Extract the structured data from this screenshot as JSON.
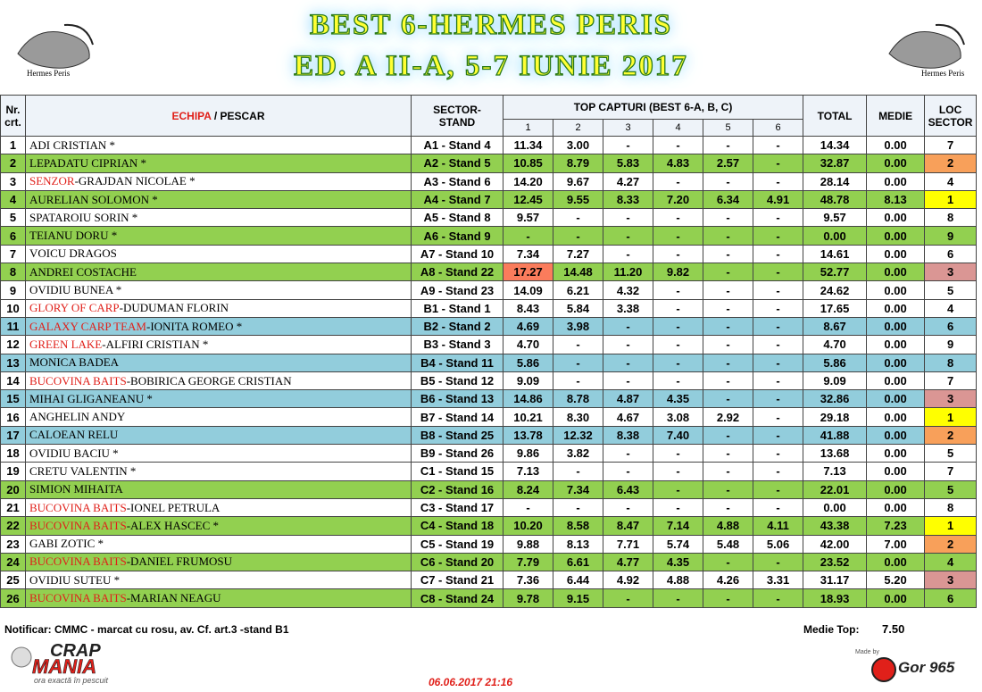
{
  "header": {
    "title_line1": "BEST 6-HERMES PERIS",
    "title_line2": "ED. A II-A, 5-7 IUNIE 2017",
    "logo_left_caption": "Hermes Peris",
    "logo_right_caption": "Hermes Peris"
  },
  "table": {
    "head": {
      "nr": [
        "Nr.",
        "crt."
      ],
      "team": "ECHIPA",
      "fisher": " / PESCAR",
      "stand": [
        "SECTOR-",
        "STAND"
      ],
      "top": "TOP CAPTURI (BEST 6-A, B, C)",
      "caps": [
        "1",
        "2",
        "3",
        "4",
        "5",
        "6"
      ],
      "total": "TOTAL",
      "medie": "MEDIE",
      "loc": [
        "LOC",
        "SECTOR"
      ]
    },
    "rows": [
      {
        "nr": "1",
        "name": "ADI CRISTIAN *",
        "stand": "A1 - Stand 4",
        "caps": [
          "11.34",
          "3.00",
          "-",
          "-",
          "-",
          "-"
        ],
        "total": "14.34",
        "medie": "0.00",
        "loc": "7"
      },
      {
        "nr": "2",
        "name": "LEPADATU CIPRIAN *",
        "stand": "A2 - Stand 5",
        "caps": [
          "10.85",
          "8.79",
          "5.83",
          "4.83",
          "2.57",
          "-"
        ],
        "total": "32.87",
        "medie": "0.00",
        "loc": "2",
        "bg": "#92d050",
        "loc_bg": "#f8a05a"
      },
      {
        "nr": "3",
        "team": "SENZOR",
        "name": "-GRAJDAN NICOLAE *",
        "stand": "A3 - Stand 6",
        "caps": [
          "14.20",
          "9.67",
          "4.27",
          "-",
          "-",
          "-"
        ],
        "total": "28.14",
        "medie": "0.00",
        "loc": "4"
      },
      {
        "nr": "4",
        "name": "AURELIAN SOLOMON *",
        "stand": "A4 - Stand 7",
        "caps": [
          "12.45",
          "9.55",
          "8.33",
          "7.20",
          "6.34",
          "4.91"
        ],
        "total": "48.78",
        "medie": "8.13",
        "loc": "1",
        "bg": "#92d050",
        "loc_bg": "#ffff00"
      },
      {
        "nr": "5",
        "name": "SPATAROIU SORIN *",
        "stand": "A5 - Stand 8",
        "caps": [
          "9.57",
          "-",
          "-",
          "-",
          "-",
          "-"
        ],
        "total": "9.57",
        "medie": "0.00",
        "loc": "8"
      },
      {
        "nr": "6",
        "name": "TEIANU DORU *",
        "stand": "A6 - Stand 9",
        "caps": [
          "-",
          "-",
          "-",
          "-",
          "-",
          "-"
        ],
        "total": "0.00",
        "medie": "0.00",
        "loc": "9",
        "bg": "#92d050"
      },
      {
        "nr": "7",
        "name": "VOICU DRAGOS",
        "stand": "A7 - Stand 10",
        "caps": [
          "7.34",
          "7.27",
          "-",
          "-",
          "-",
          "-"
        ],
        "total": "14.61",
        "medie": "0.00",
        "loc": "6"
      },
      {
        "nr": "8",
        "name": "ANDREI COSTACHE",
        "stand": "A8 - Stand 22",
        "caps": [
          "17.27",
          "14.48",
          "11.20",
          "9.82",
          "-",
          "-"
        ],
        "total": "52.77",
        "medie": "0.00",
        "loc": "3",
        "bg": "#92d050",
        "loc_bg": "#da9694",
        "cap1_bg": "#fa7c5c"
      },
      {
        "nr": "9",
        "name": "OVIDIU BUNEA *",
        "stand": "A9 - Stand 23",
        "caps": [
          "14.09",
          "6.21",
          "4.32",
          "-",
          "-",
          "-"
        ],
        "total": "24.62",
        "medie": "0.00",
        "loc": "5"
      },
      {
        "nr": "10",
        "team": "GLORY OF CARP",
        "name": "-DUDUMAN FLORIN",
        "stand": "B1 - Stand 1",
        "caps": [
          "8.43",
          "5.84",
          "3.38",
          "-",
          "-",
          "-"
        ],
        "total": "17.65",
        "medie": "0.00",
        "loc": "4"
      },
      {
        "nr": "11",
        "team": "GALAXY CARP TEAM",
        "name": "-IONITA ROMEO *",
        "stand": "B2 - Stand 2",
        "caps": [
          "4.69",
          "3.98",
          "-",
          "-",
          "-",
          "-"
        ],
        "total": "8.67",
        "medie": "0.00",
        "loc": "6",
        "bg": "#92cddc"
      },
      {
        "nr": "12",
        "team": "GREEN LAKE",
        "name": "-ALFIRI CRISTIAN *",
        "stand": "B3 - Stand 3",
        "caps": [
          "4.70",
          "-",
          "-",
          "-",
          "-",
          "-"
        ],
        "total": "4.70",
        "medie": "0.00",
        "loc": "9"
      },
      {
        "nr": "13",
        "name": "MONICA BADEA",
        "stand": "B4 - Stand 11",
        "caps": [
          "5.86",
          "-",
          "-",
          "-",
          "-",
          "-"
        ],
        "total": "5.86",
        "medie": "0.00",
        "loc": "8",
        "bg": "#92cddc"
      },
      {
        "nr": "14",
        "team": "BUCOVINA BAITS",
        "name": "-BOBIRICA GEORGE CRISTIAN",
        "stand": "B5 - Stand 12",
        "caps": [
          "9.09",
          "-",
          "-",
          "-",
          "-",
          "-"
        ],
        "total": "9.09",
        "medie": "0.00",
        "loc": "7"
      },
      {
        "nr": "15",
        "name": "MIHAI GLIGANEANU *",
        "stand": "B6 - Stand 13",
        "caps": [
          "14.86",
          "8.78",
          "4.87",
          "4.35",
          "-",
          "-"
        ],
        "total": "32.86",
        "medie": "0.00",
        "loc": "3",
        "bg": "#92cddc",
        "loc_bg": "#da9694"
      },
      {
        "nr": "16",
        "name": "ANGHELIN ANDY",
        "stand": "B7 - Stand 14",
        "caps": [
          "10.21",
          "8.30",
          "4.67",
          "3.08",
          "2.92",
          "-"
        ],
        "total": "29.18",
        "medie": "0.00",
        "loc": "1",
        "loc_bg": "#ffff00"
      },
      {
        "nr": "17",
        "name": "CALOEAN RELU",
        "stand": "B8 - Stand 25",
        "caps": [
          "13.78",
          "12.32",
          "8.38",
          "7.40",
          "-",
          "-"
        ],
        "total": "41.88",
        "medie": "0.00",
        "loc": "2",
        "bg": "#92cddc",
        "loc_bg": "#f8a05a"
      },
      {
        "nr": "18",
        "name": "OVIDIU BACIU *",
        "stand": "B9 - Stand 26",
        "caps": [
          "9.86",
          "3.82",
          "-",
          "-",
          "-",
          "-"
        ],
        "total": "13.68",
        "medie": "0.00",
        "loc": "5"
      },
      {
        "nr": "19",
        "name": "CRETU VALENTIN *",
        "stand": "C1 - Stand 15",
        "caps": [
          "7.13",
          "-",
          "-",
          "-",
          "-",
          "-"
        ],
        "total": "7.13",
        "medie": "0.00",
        "loc": "7"
      },
      {
        "nr": "20",
        "name": "SIMION MIHAITA",
        "stand": "C2 - Stand 16",
        "caps": [
          "8.24",
          "7.34",
          "6.43",
          "-",
          "-",
          "-"
        ],
        "total": "22.01",
        "medie": "0.00",
        "loc": "5",
        "bg": "#92d050"
      },
      {
        "nr": "21",
        "team": "BUCOVINA BAITS",
        "name": "-IONEL PETRULA",
        "stand": "C3 - Stand 17",
        "caps": [
          "-",
          "-",
          "-",
          "-",
          "-",
          "-"
        ],
        "total": "0.00",
        "medie": "0.00",
        "loc": "8"
      },
      {
        "nr": "22",
        "team": "BUCOVINA BAITS",
        "name": "-ALEX HASCEC *",
        "stand": "C4 - Stand 18",
        "caps": [
          "10.20",
          "8.58",
          "8.47",
          "7.14",
          "4.88",
          "4.11"
        ],
        "total": "43.38",
        "medie": "7.23",
        "loc": "1",
        "bg": "#92d050",
        "loc_bg": "#ffff00"
      },
      {
        "nr": "23",
        "name": "GABI ZOTIC *",
        "stand": "C5 - Stand 19",
        "caps": [
          "9.88",
          "8.13",
          "7.71",
          "5.74",
          "5.48",
          "5.06"
        ],
        "total": "42.00",
        "medie": "7.00",
        "loc": "2",
        "loc_bg": "#f8a05a"
      },
      {
        "nr": "24",
        "team": "BUCOVINA BAITS",
        "name": "-DANIEL FRUMOSU",
        "stand": "C6 - Stand 20",
        "caps": [
          "7.79",
          "6.61",
          "4.77",
          "4.35",
          "-",
          "-"
        ],
        "total": "23.52",
        "medie": "0.00",
        "loc": "4",
        "bg": "#92d050"
      },
      {
        "nr": "25",
        "name": "OVIDIU SUTEU *",
        "stand": "C7 - Stand 21",
        "caps": [
          "7.36",
          "6.44",
          "4.92",
          "4.88",
          "4.26",
          "3.31"
        ],
        "total": "31.17",
        "medie": "5.20",
        "loc": "3",
        "loc_bg": "#da9694"
      },
      {
        "nr": "26",
        "team": "BUCOVINA BAITS",
        "name": "-MARIAN NEAGU",
        "stand": "C8 - Stand 24",
        "caps": [
          "9.78",
          "9.15",
          "-",
          "-",
          "-",
          "-"
        ],
        "total": "18.93",
        "medie": "0.00",
        "loc": "6",
        "bg": "#92d050"
      }
    ]
  },
  "footer": {
    "note": "Notificar: CMMC - marcat cu rosu, av. Cf. art.3 -stand B1",
    "medie_top_label": "Medie Top:",
    "medie_top_value": "7.50",
    "date": "06.06.2017 21:16",
    "brand_left": [
      "CRAP",
      "MANIA",
      "ora exactă în pescuit"
    ],
    "brand_right": [
      "Made by",
      "Gor 965"
    ]
  }
}
